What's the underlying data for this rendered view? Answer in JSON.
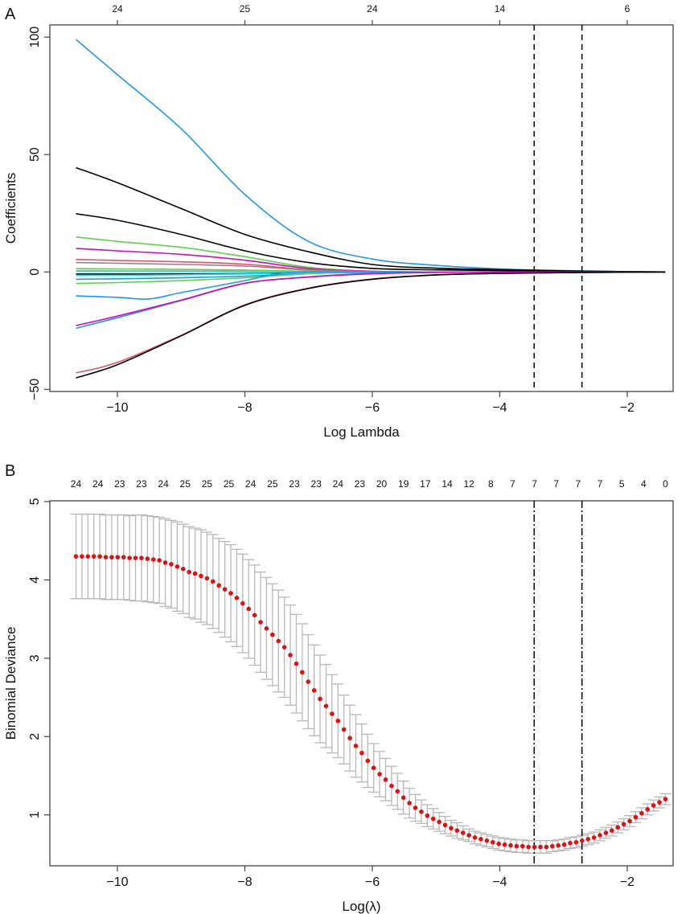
{
  "panel_labels": {
    "a": "A",
    "b": "B"
  },
  "chart_data": [
    {
      "type": "line",
      "panel": "A",
      "xlabel": "Log Lambda",
      "ylabel": "Coefficients",
      "xlim": [
        -11.06,
        -1.28
      ],
      "ylim": [
        -50.9,
        105.2
      ],
      "xticks": [
        -10,
        -8,
        -6,
        -4,
        -2
      ],
      "xtick_labels": [
        "−10",
        "−8",
        "−6",
        "−4",
        "−2"
      ],
      "yticks": [
        -50,
        0,
        50,
        100
      ],
      "ytick_labels": [
        "−50",
        "0",
        "50",
        "100"
      ],
      "top_axis": {
        "ticks": [
          -10,
          -8,
          -6,
          -4,
          -2
        ],
        "labels": [
          "24",
          "25",
          "24",
          "14",
          "6"
        ]
      },
      "vlines": [
        -3.46,
        -2.71
      ],
      "vline_style": "dashed",
      "knots": [
        -10.65,
        -10,
        -9,
        -8,
        -7,
        -6,
        -5,
        -4,
        -3,
        -2,
        -1.4
      ],
      "series": [
        {
          "color": "#2297E6",
          "y": [
            99,
            84,
            61,
            33,
            13,
            5.5,
            2.8,
            1.3,
            0.6,
            0.15,
            0
          ]
        },
        {
          "color": "#000000",
          "y": [
            44.4,
            38,
            27,
            16,
            8.6,
            3.2,
            1.6,
            1.0,
            0.5,
            0.15,
            0
          ]
        },
        {
          "color": "#000000",
          "y": [
            24.8,
            22,
            16,
            9,
            4,
            1.5,
            0.9,
            0.6,
            0.3,
            0.1,
            0
          ]
        },
        {
          "color": "#61D04F",
          "y": [
            14.9,
            13,
            10.5,
            6.5,
            2,
            0.3,
            0,
            0,
            0,
            0,
            0
          ]
        },
        {
          "color": "#CD0BBC",
          "y": [
            10,
            9,
            7.5,
            5,
            1.5,
            0.3,
            0,
            0,
            0,
            0,
            0
          ]
        },
        {
          "color": "#DF536B",
          "y": [
            5.3,
            4.9,
            4.3,
            3.3,
            1,
            0.2,
            0,
            0,
            0,
            0,
            0
          ]
        },
        {
          "color": "#9E7E86",
          "y": [
            4,
            3.7,
            3.2,
            2.5,
            0.8,
            0.1,
            0,
            0,
            0,
            0,
            0
          ]
        },
        {
          "color": "#61D04F",
          "y": [
            1.4,
            1.3,
            1.1,
            0.8,
            0.3,
            0,
            0,
            0,
            0,
            0,
            0
          ]
        },
        {
          "color": "#9E9E9E",
          "y": [
            0.5,
            0.45,
            0.4,
            0.3,
            0.1,
            0,
            0,
            0,
            0,
            0,
            0
          ]
        },
        {
          "color": "#28E2E5",
          "y": [
            0.2,
            0.2,
            0.15,
            0.1,
            0.05,
            0,
            0,
            0,
            0,
            0,
            0
          ]
        },
        {
          "color": "#000000",
          "y": [
            -0.9,
            -0.9,
            -0.85,
            -0.7,
            -0.3,
            0,
            0,
            0,
            0,
            0,
            0
          ]
        },
        {
          "color": "#28E2E5",
          "y": [
            -1.5,
            -1.4,
            -1.2,
            -0.9,
            -0.4,
            0,
            0,
            0,
            0,
            0,
            0
          ]
        },
        {
          "color": "#2297E6",
          "y": [
            -3.1,
            -2.9,
            -2.5,
            -1.8,
            -0.7,
            -0.1,
            0,
            0,
            0,
            0,
            0
          ]
        },
        {
          "color": "#61D04F",
          "y": [
            -4.9,
            -4.5,
            -3.7,
            -2.5,
            -0.8,
            -0.1,
            0,
            0,
            0,
            0,
            0
          ]
        },
        {
          "color": "#2297E6",
          "x": [
            -10.65,
            -10,
            -9.5,
            -9,
            -8,
            -7.5,
            -7,
            -6,
            -1.4
          ],
          "y": [
            -10.2,
            -10.8,
            -11.5,
            -8.8,
            -3.7,
            -0.8,
            0,
            0,
            0
          ]
        },
        {
          "color": "#2297E6",
          "y": [
            -24,
            -19.5,
            -12.2,
            -4.9,
            -2.1,
            -0.5,
            0,
            0,
            0,
            0,
            0
          ]
        },
        {
          "color": "#CD0BBC",
          "y": [
            -22.8,
            -18.8,
            -12,
            -4.8,
            -2.2,
            -0.8,
            -0.2,
            0,
            0,
            0,
            0
          ]
        },
        {
          "color": "#DF536B",
          "y": [
            -43,
            -38.5,
            -27,
            -14,
            -6.9,
            -3.0,
            -1.2,
            -0.6,
            -0.3,
            -0.1,
            0
          ]
        },
        {
          "color": "#000000",
          "y": [
            -45.1,
            -39.5,
            -27.2,
            -14.2,
            -7.0,
            -3.1,
            -1.3,
            -0.6,
            -0.3,
            -0.1,
            0
          ]
        }
      ]
    },
    {
      "type": "scatter",
      "panel": "B",
      "xlabel": "Log(λ)",
      "ylabel": "Binomial Deviance",
      "xlim": [
        -11.06,
        -1.28
      ],
      "ylim": [
        0.35,
        5.01
      ],
      "xticks": [
        -10,
        -8,
        -6,
        -4,
        -2
      ],
      "xtick_labels": [
        "−10",
        "−8",
        "−6",
        "−4",
        "−2"
      ],
      "yticks": [
        1,
        2,
        3,
        4,
        5
      ],
      "ytick_labels": [
        "1",
        "2",
        "3",
        "4",
        "5"
      ],
      "point_color": "#E01010",
      "errorbar_color": "#B8B8B8",
      "vlines": [
        -3.46,
        -2.71
      ],
      "vline_style": "dotdash",
      "log_lambda_range": [
        -10.65,
        -1.4
      ],
      "top_labels": [
        "24",
        "24",
        "23",
        "23",
        "24",
        "25",
        "25",
        "25",
        "24",
        "25",
        "23",
        "23",
        "24",
        "23",
        "20",
        "19",
        "17",
        "14",
        "12",
        "8",
        "7",
        "7",
        "7",
        "7",
        "7",
        "5",
        "4",
        "0"
      ],
      "cvm": [
        4.3,
        4.3,
        4.3,
        4.3,
        4.3,
        4.29,
        4.29,
        4.29,
        4.29,
        4.28,
        4.28,
        4.28,
        4.27,
        4.26,
        4.25,
        4.22,
        4.2,
        4.17,
        4.14,
        4.1,
        4.08,
        4.05,
        4.02,
        3.98,
        3.93,
        3.88,
        3.83,
        3.77,
        3.7,
        3.63,
        3.55,
        3.46,
        3.38,
        3.3,
        3.22,
        3.14,
        3.04,
        2.93,
        2.82,
        2.7,
        2.59,
        2.48,
        2.39,
        2.29,
        2.2,
        2.09,
        1.98,
        1.88,
        1.79,
        1.69,
        1.6,
        1.52,
        1.45,
        1.37,
        1.3,
        1.22,
        1.15,
        1.09,
        1.04,
        0.99,
        0.95,
        0.91,
        0.87,
        0.83,
        0.8,
        0.77,
        0.74,
        0.71,
        0.69,
        0.67,
        0.65,
        0.63,
        0.62,
        0.61,
        0.6,
        0.6,
        0.59,
        0.59,
        0.59,
        0.59,
        0.6,
        0.61,
        0.62,
        0.64,
        0.65,
        0.67,
        0.69,
        0.71,
        0.74,
        0.77,
        0.8,
        0.84,
        0.88,
        0.92,
        0.97,
        1.02,
        1.07,
        1.12,
        1.16,
        1.2
      ],
      "cvsd": [
        0.54,
        0.54,
        0.54,
        0.54,
        0.54,
        0.54,
        0.54,
        0.54,
        0.54,
        0.54,
        0.55,
        0.55,
        0.55,
        0.55,
        0.55,
        0.56,
        0.56,
        0.57,
        0.57,
        0.58,
        0.58,
        0.59,
        0.59,
        0.6,
        0.6,
        0.61,
        0.62,
        0.62,
        0.63,
        0.63,
        0.64,
        0.64,
        0.65,
        0.65,
        0.65,
        0.64,
        0.64,
        0.63,
        0.62,
        0.6,
        0.58,
        0.56,
        0.53,
        0.5,
        0.47,
        0.44,
        0.42,
        0.4,
        0.37,
        0.34,
        0.31,
        0.29,
        0.27,
        0.25,
        0.23,
        0.21,
        0.19,
        0.17,
        0.15,
        0.14,
        0.13,
        0.12,
        0.11,
        0.1,
        0.1,
        0.09,
        0.08,
        0.08,
        0.08,
        0.08,
        0.08,
        0.08,
        0.08,
        0.08,
        0.08,
        0.08,
        0.08,
        0.08,
        0.08,
        0.08,
        0.07,
        0.07,
        0.07,
        0.07,
        0.07,
        0.07,
        0.07,
        0.07,
        0.07,
        0.07,
        0.07,
        0.07,
        0.07,
        0.07,
        0.07,
        0.07,
        0.07,
        0.07,
        0.07,
        0.07
      ]
    }
  ]
}
